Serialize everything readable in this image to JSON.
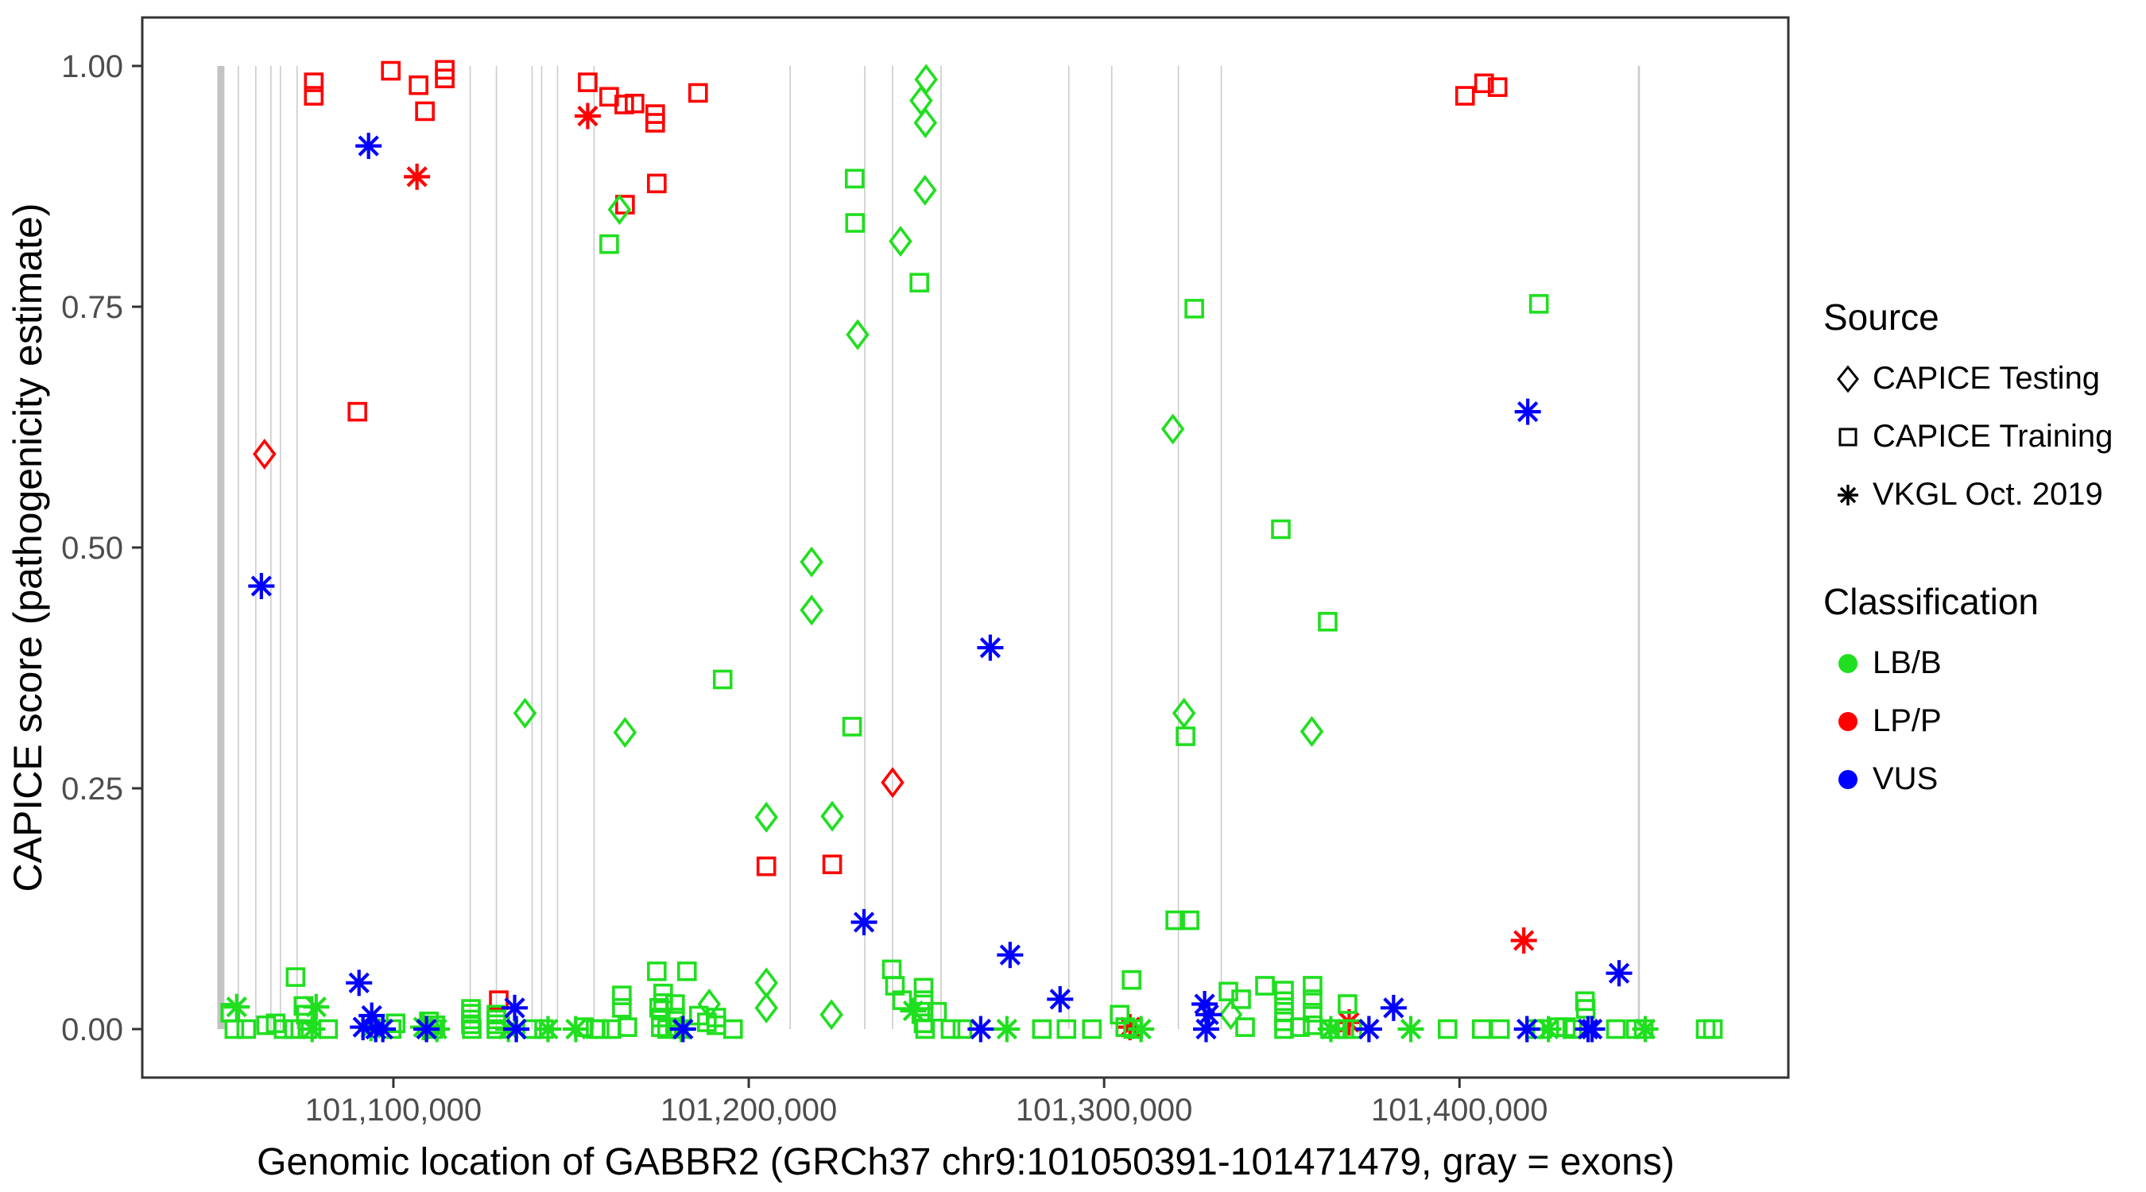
{
  "axes": {
    "x": {
      "title": "Genomic location of GABBR2 (GRCh37 chr9:101050391-101471479, gray = exons)",
      "tick_labels": [
        "101,100,000",
        "101,200,000",
        "101,300,000",
        "101,400,000"
      ],
      "tick_values": [
        101100000,
        101200000,
        101300000,
        101400000
      ]
    },
    "y": {
      "title": "CAPICE score (pathogenicity estimate)",
      "tick_labels": [
        "1.00",
        "0.75",
        "0.50",
        "0.25",
        "0.00"
      ],
      "tick_values": [
        1.0,
        0.75,
        0.5,
        0.25,
        0.0
      ]
    }
  },
  "legend": {
    "source": {
      "title": "Source",
      "items": [
        {
          "label": "CAPICE Testing",
          "marker": "diamond"
        },
        {
          "label": "CAPICE Training",
          "marker": "square"
        },
        {
          "label": "VKGL Oct. 2019",
          "marker": "asterisk"
        }
      ]
    },
    "classification": {
      "title": "Classification",
      "items": [
        {
          "label": "LB/B",
          "color": "#1FDF1F"
        },
        {
          "label": "LP/P",
          "color": "#FF0000"
        },
        {
          "label": "VUS",
          "color": "#0000FF"
        }
      ]
    }
  },
  "colors": {
    "LB/B": "#1FDF1F",
    "LP/P": "#FF0000",
    "VUS": "#0000FF",
    "exon": "#CBCBCB",
    "exon_thick": "#C3C3C3",
    "panel_border": "#333333",
    "tick_text": "#4D4D4D",
    "axis_title_text": "#000000"
  },
  "chart_data": {
    "type": "scatter",
    "title": "",
    "xlabel": "Genomic location of GABBR2 (GRCh37 chr9:101050391-101471479, gray = exons)",
    "ylabel": "CAPICE score (pathogenicity estimate)",
    "x_range_bp": [
      101029337,
      101492533
    ],
    "gene_region": {
      "chrom": "chr9",
      "start": 101050391,
      "end": 101471479,
      "note": "gray = exons"
    },
    "ylim": [
      0,
      1
    ],
    "grid": false,
    "legend_position": "right",
    "exons_bp": {
      "thick": [
        {
          "pos": 101051460,
          "width_bp": 2000
        }
      ],
      "thin": [
        101056370,
        101061290,
        101065530,
        101068210,
        101072900,
        101121610,
        101128990,
        101139040,
        101141720,
        101146190,
        101156470,
        101211650,
        101232650,
        101240470,
        101254100,
        101290070,
        101302140,
        101320900,
        101332970,
        101450480
      ]
    },
    "series": [
      {
        "name": "CAPICE Training / LP/P",
        "source": "CAPICE Training",
        "classification": "LP/P",
        "marker": "square",
        "points": [
          [
            101077600,
            0.983
          ],
          [
            101077600,
            0.969
          ],
          [
            101099270,
            0.995
          ],
          [
            101107090,
            0.98
          ],
          [
            101114460,
            0.996
          ],
          [
            101114460,
            0.987
          ],
          [
            101108880,
            0.953
          ],
          [
            101154680,
            0.983
          ],
          [
            101160710,
            0.968
          ],
          [
            101164960,
            0.96
          ],
          [
            101167860,
            0.961
          ],
          [
            101173670,
            0.95
          ],
          [
            101173670,
            0.941
          ],
          [
            101185740,
            0.972
          ],
          [
            101174120,
            0.878
          ],
          [
            101165180,
            0.856
          ],
          [
            101089880,
            0.641
          ],
          [
            101401560,
            0.969
          ],
          [
            101406920,
            0.982
          ],
          [
            101410720,
            0.978
          ],
          [
            101204950,
            0.169
          ],
          [
            101223490,
            0.171
          ],
          [
            101129660,
            0.03
          ]
        ]
      },
      {
        "name": "CAPICE Testing / LP/P",
        "source": "CAPICE Testing",
        "classification": "LP/P",
        "marker": "diamond",
        "points": [
          [
            101063740,
            0.597
          ],
          [
            101240470,
            0.256
          ]
        ]
      },
      {
        "name": "VKGL Oct. 2019 / LP/P",
        "source": "VKGL Oct. 2019",
        "classification": "LP/P",
        "marker": "asterisk",
        "points": [
          [
            101106640,
            0.885
          ],
          [
            101154680,
            0.948
          ],
          [
            101418090,
            0.092
          ],
          [
            101368940,
            0.007
          ],
          [
            101307280,
            0.002
          ]
        ]
      },
      {
        "name": "CAPICE Testing / LB/B",
        "source": "CAPICE Testing",
        "classification": "LB/B",
        "marker": "diamond",
        "points": [
          [
            101249900,
            0.986
          ],
          [
            101248500,
            0.964
          ],
          [
            101249700,
            0.941
          ],
          [
            101249600,
            0.871
          ],
          [
            101242700,
            0.818
          ],
          [
            101163620,
            0.851
          ],
          [
            101230640,
            0.721
          ],
          [
            101217680,
            0.485
          ],
          [
            101217680,
            0.435
          ],
          [
            101137030,
            0.328
          ],
          [
            101165180,
            0.308
          ],
          [
            101319340,
            0.623
          ],
          [
            101322470,
            0.328
          ],
          [
            101358440,
            0.309
          ],
          [
            101204950,
            0.22
          ],
          [
            101223490,
            0.221
          ],
          [
            101188870,
            0.026
          ],
          [
            101204950,
            0.048
          ],
          [
            101204950,
            0.022
          ],
          [
            101223270,
            0.015
          ],
          [
            101335650,
            0.015
          ]
        ]
      },
      {
        "name": "CAPICE Training / LB/B",
        "source": "CAPICE Training",
        "classification": "LB/B",
        "marker": "square",
        "points": [
          [
            101160710,
            0.815
          ],
          [
            101229800,
            0.883
          ],
          [
            101229900,
            0.837
          ],
          [
            101248000,
            0.775
          ],
          [
            101325370,
            0.748
          ],
          [
            101422340,
            0.753
          ],
          [
            101229080,
            0.314
          ],
          [
            101322910,
            0.304
          ],
          [
            101192660,
            0.363
          ],
          [
            101349730,
            0.519
          ],
          [
            101362910,
            0.423
          ],
          [
            101072460,
            0.054
          ],
          [
            101320010,
            0.113
          ],
          [
            101324030,
            0.113
          ],
          [
            101174120,
            0.06
          ],
          [
            101182610,
            0.06
          ],
          [
            101240250,
            0.062
          ],
          [
            101307720,
            0.051
          ],
          [
            101241140,
            0.045
          ],
          [
            101345260,
            0.045
          ],
          [
            101435300,
            0.029
          ],
          [
            101435520,
            0.021
          ],
          [
            101368490,
            0.026
          ],
          [
            101358660,
            0.045
          ],
          [
            101358660,
            0.031
          ],
          [
            101358660,
            0.017
          ],
          [
            101358660,
            0.004
          ],
          [
            101334980,
            0.039
          ],
          [
            101338550,
            0.031
          ],
          [
            101339670,
            0.002
          ],
          [
            101055250,
            0.0
          ],
          [
            101058600,
            0.0
          ],
          [
            101064190,
            0.004
          ],
          [
            101066870,
            0.006
          ],
          [
            101069100,
            0.0
          ],
          [
            101072010,
            0.0
          ],
          [
            101074690,
            0.024
          ],
          [
            101075360,
            0.015
          ],
          [
            101075810,
            0.0
          ],
          [
            101081620,
            0.0
          ],
          [
            101099490,
            0.0
          ],
          [
            101100610,
            0.006
          ],
          [
            101054100,
            0.017
          ],
          [
            101109990,
            0.008
          ],
          [
            101111110,
            0.0
          ],
          [
            101111780,
            0.004
          ],
          [
            101121830,
            0.021
          ],
          [
            101121830,
            0.016
          ],
          [
            101121830,
            0.01
          ],
          [
            101121830,
            0.005
          ],
          [
            101122060,
            0.0
          ],
          [
            101128990,
            0.015
          ],
          [
            101128990,
            0.01
          ],
          [
            101128990,
            0.005
          ],
          [
            101128990,
            0.0
          ],
          [
            101139040,
            0.0
          ],
          [
            101142400,
            0.0
          ],
          [
            101153560,
            0.002
          ],
          [
            101156910,
            0.0
          ],
          [
            101158030,
            0.0
          ],
          [
            101161380,
            0.0
          ],
          [
            101165850,
            0.002
          ],
          [
            101175240,
            0.012
          ],
          [
            101175240,
            0.002
          ],
          [
            101177020,
            0.0
          ],
          [
            101179260,
            0.026
          ],
          [
            101179260,
            0.012
          ],
          [
            101179260,
            0.002
          ],
          [
            101180380,
            0.0
          ],
          [
            101185960,
            0.014
          ],
          [
            101188200,
            0.007
          ],
          [
            101190880,
            0.012
          ],
          [
            101190880,
            0.004
          ],
          [
            101195570,
            0.0
          ],
          [
            101164290,
            0.035
          ],
          [
            101164290,
            0.022
          ],
          [
            101174790,
            0.022
          ],
          [
            101175910,
            0.037
          ],
          [
            101175910,
            0.027
          ],
          [
            101243150,
            0.03
          ],
          [
            101249180,
            0.043
          ],
          [
            101249180,
            0.03
          ],
          [
            101249180,
            0.018
          ],
          [
            101249180,
            0.006
          ],
          [
            101249630,
            0.0
          ],
          [
            101252980,
            0.018
          ],
          [
            101256780,
            0.0
          ],
          [
            101260130,
            0.0
          ],
          [
            101282480,
            0.0
          ],
          [
            101289400,
            0.0
          ],
          [
            101296550,
            0.0
          ],
          [
            101304370,
            0.015
          ],
          [
            101305940,
            0.002
          ],
          [
            101308170,
            0.0
          ],
          [
            101350620,
            0.04
          ],
          [
            101350620,
            0.029
          ],
          [
            101350620,
            0.018
          ],
          [
            101350620,
            0.008
          ],
          [
            101350620,
            0.0
          ],
          [
            101355090,
            0.002
          ],
          [
            101363580,
            0.0
          ],
          [
            101365810,
            0.0
          ],
          [
            101367600,
            0.0
          ],
          [
            101369830,
            0.0
          ],
          [
            101396640,
            0.0
          ],
          [
            101406250,
            0.0
          ],
          [
            101411390,
            0.0
          ],
          [
            101421220,
            0.0
          ],
          [
            101423230,
            0.0
          ],
          [
            101427700,
            0.002
          ],
          [
            101429930,
            0.002
          ],
          [
            101431720,
            0.0
          ],
          [
            101444010,
            0.0
          ],
          [
            101449590,
            0.0
          ],
          [
            101451830,
            0.0
          ],
          [
            101469260,
            0.0
          ],
          [
            101471300,
            0.0
          ]
        ]
      },
      {
        "name": "VKGL Oct. 2019 / LB/B",
        "source": "VKGL Oct. 2019",
        "classification": "LB/B",
        "marker": "asterisk",
        "points": [
          [
            101055900,
            0.023
          ],
          [
            101077150,
            0.0
          ],
          [
            101078270,
            0.023
          ],
          [
            101093680,
            0.001
          ],
          [
            101108430,
            0.002
          ],
          [
            101112230,
            0.0
          ],
          [
            101132350,
            0.0
          ],
          [
            101134580,
            0.0
          ],
          [
            101143510,
            0.0
          ],
          [
            101151330,
            0.0
          ],
          [
            101246280,
            0.019
          ],
          [
            101272640,
            0.0
          ],
          [
            101310400,
            0.0
          ],
          [
            101363800,
            0.0
          ],
          [
            101386300,
            0.0
          ],
          [
            101425020,
            0.0
          ],
          [
            101452280,
            0.0
          ],
          [
            101181000,
            0.0
          ]
        ]
      },
      {
        "name": "VKGL Oct. 2019 / VUS",
        "source": "VKGL Oct. 2019",
        "classification": "VUS",
        "marker": "asterisk",
        "points": [
          [
            101093010,
            0.917
          ],
          [
            101062850,
            0.46
          ],
          [
            101419210,
            0.641
          ],
          [
            101267960,
            0.396
          ],
          [
            101232430,
            0.111
          ],
          [
            101273540,
            0.077
          ],
          [
            101444900,
            0.058
          ],
          [
            101090330,
            0.048
          ],
          [
            101287610,
            0.031
          ],
          [
            101381450,
            0.022
          ],
          [
            101091450,
            0.002
          ],
          [
            101095020,
            0.0
          ],
          [
            101097030,
            0.0
          ],
          [
            101109320,
            0.0
          ],
          [
            101134130,
            0.022
          ],
          [
            101134580,
            0.0
          ],
          [
            101181490,
            0.0
          ],
          [
            101265270,
            0.0
          ],
          [
            101328280,
            0.026
          ],
          [
            101329390,
            0.015
          ],
          [
            101328700,
            0.0
          ],
          [
            101374520,
            0.0
          ],
          [
            101418990,
            0.0
          ],
          [
            101436190,
            0.0
          ],
          [
            101437310,
            0.0
          ],
          [
            101093900,
            0.014
          ]
        ]
      }
    ]
  }
}
